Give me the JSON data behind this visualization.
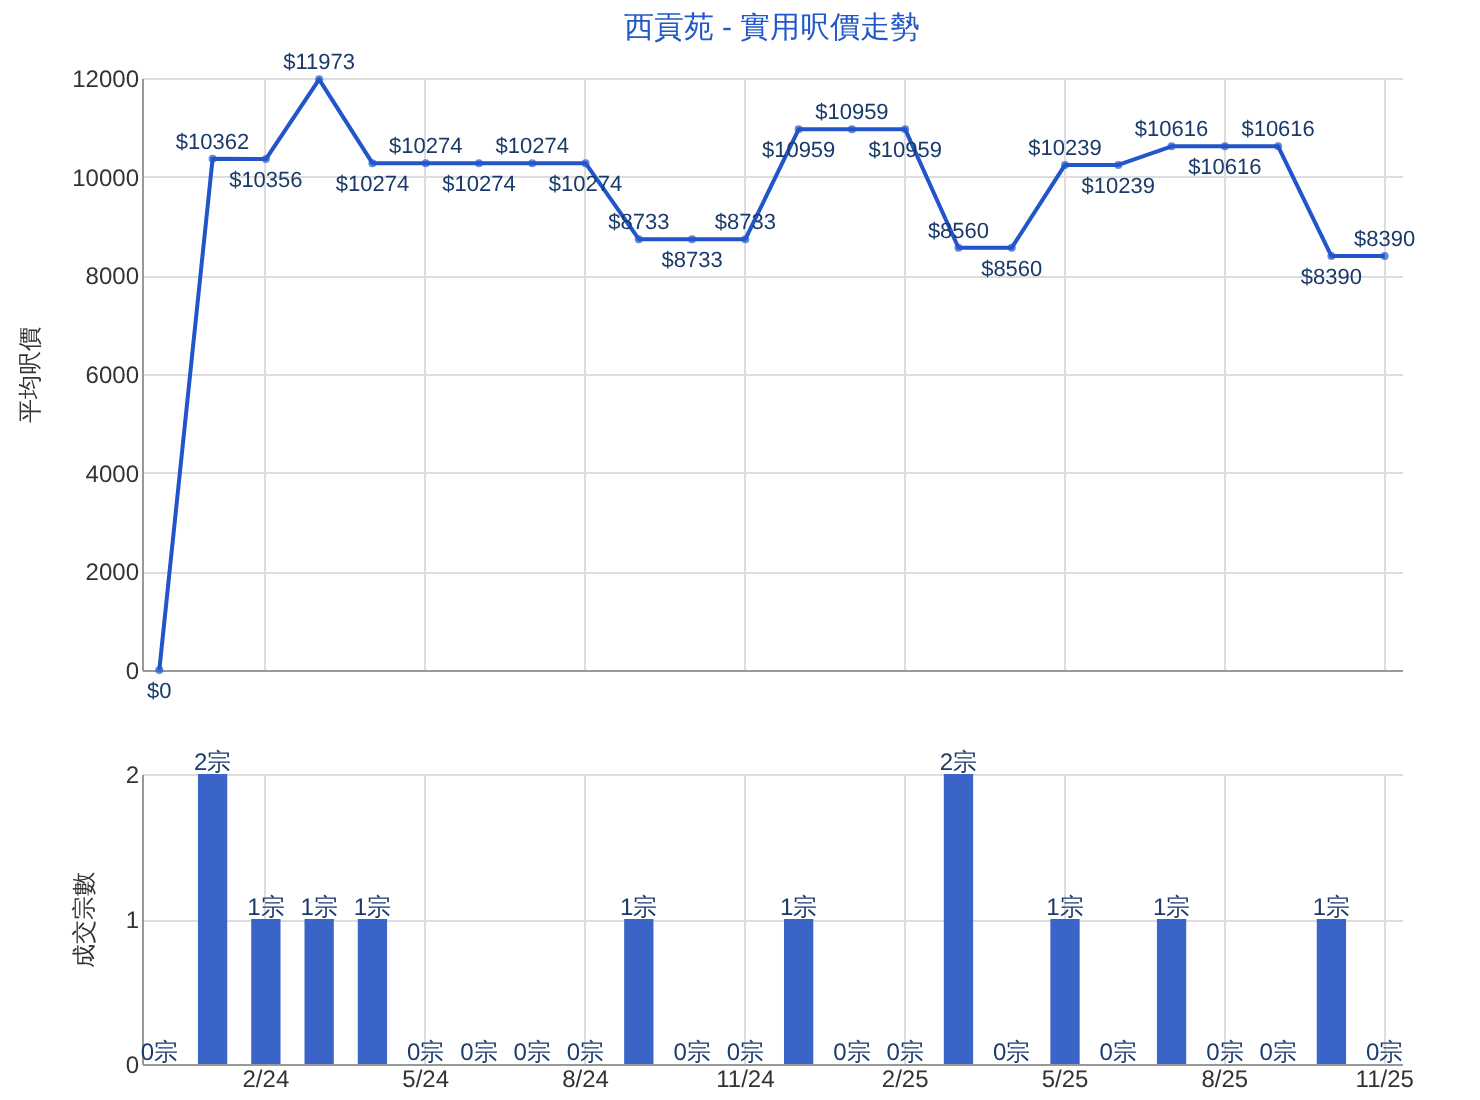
{
  "chart_data": [
    {
      "type": "line",
      "title": "西貢苑 - 實用呎價走勢",
      "ylabel": "平均呎價",
      "categories": [
        null,
        null,
        null,
        null,
        null,
        null,
        null,
        null,
        null,
        null,
        null,
        null,
        null,
        null,
        null,
        null,
        null,
        null,
        null,
        null,
        null,
        null,
        null,
        null
      ],
      "series": [
        {
          "color": "#2255cc",
          "values": [
            0,
            10362,
            10356,
            11973,
            10274,
            10274,
            10274,
            10274,
            10274,
            8733,
            8733,
            8733,
            10959,
            10959,
            10959,
            8560,
            8560,
            10239,
            10239,
            10616,
            10616,
            10616,
            8390,
            8390
          ],
          "value_labels": [
            "$0",
            "$10362",
            "$10356",
            "$11973",
            "$10274",
            "$10274",
            "$10274",
            "$10274",
            "$10274",
            "$8733",
            "$8733",
            "$8733",
            "$10959",
            "$10959",
            "$10959",
            "$8560",
            "$8560",
            "$10239",
            "$10239",
            "$10616",
            "$10616",
            "$10616",
            "$8390",
            "$8390"
          ]
        }
      ],
      "ylim": [
        0,
        12000
      ],
      "yticks": [
        0,
        2000,
        4000,
        6000,
        8000,
        10000,
        12000
      ],
      "grid": true,
      "marker": "circle",
      "tick_labels": "y"
    },
    {
      "type": "bar",
      "ylabel": "成交宗數",
      "categories": [
        null,
        null,
        "2/24",
        null,
        null,
        "5/24",
        null,
        null,
        "8/24",
        null,
        null,
        "11/24",
        null,
        null,
        "2/25",
        null,
        null,
        "5/25",
        null,
        null,
        "8/25",
        null,
        null,
        "11/25"
      ],
      "values": [
        0,
        2,
        1,
        1,
        1,
        0,
        0,
        0,
        0,
        1,
        0,
        0,
        1,
        0,
        0,
        2,
        0,
        1,
        0,
        1,
        0,
        0,
        1,
        0
      ],
      "value_labels": [
        "0宗",
        "2宗",
        "1宗",
        "1宗",
        "1宗",
        "0宗",
        "0宗",
        "0宗",
        "0宗",
        "1宗",
        "0宗",
        "0宗",
        "1宗",
        "0宗",
        "0宗",
        "2宗",
        "0宗",
        "1宗",
        "0宗",
        "1宗",
        "0宗",
        "0宗",
        "1宗",
        "0宗"
      ],
      "color": "#3a64c8",
      "ylim": [
        0,
        2
      ],
      "yticks": [
        0,
        1,
        2
      ],
      "grid": true
    }
  ]
}
